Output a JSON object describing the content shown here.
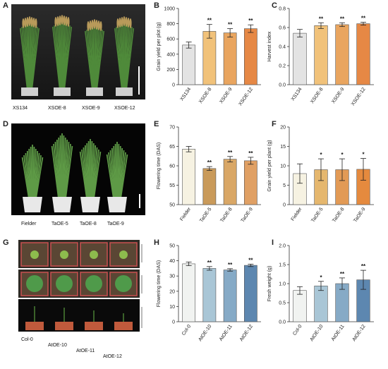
{
  "panels": {
    "a": {
      "letter": "A",
      "labels": [
        "XS134",
        "XSOE-8",
        "XSOE-9",
        "XSOE-12"
      ]
    },
    "b": {
      "letter": "B"
    },
    "c": {
      "letter": "C"
    },
    "d": {
      "letter": "D",
      "labels": [
        "Fielder",
        "TaOE-5",
        "TaOE-8",
        "TaOE-9"
      ]
    },
    "e": {
      "letter": "E"
    },
    "f": {
      "letter": "F"
    },
    "g": {
      "letter": "G",
      "labels": [
        "Col-0",
        "AtOE-10",
        "AtOE-11",
        "AtOE-12"
      ]
    },
    "h": {
      "letter": "H"
    },
    "i": {
      "letter": "I"
    }
  },
  "colors": {
    "photo_bg_a": "#1f1f1f",
    "photo_bg_d": "#050505",
    "plant_green": "#4f8a3a",
    "panicle_tan": "#b89a5a",
    "pot_white": "#e8e8e8",
    "tray_bg": "#3a3026",
    "pot_terracotta": "#c05a3c",
    "scale_bar": "#ffffff"
  },
  "chart_data": [
    {
      "id": "B",
      "type": "bar",
      "categories": [
        "XS134",
        "XSOE-8",
        "XSOE-9",
        "XSOE-12"
      ],
      "values": [
        520,
        700,
        680,
        735
      ],
      "errors": [
        40,
        90,
        55,
        50
      ],
      "significance": [
        "",
        "**",
        "**",
        "**"
      ],
      "ylabel": "Grain yield per plot (g)",
      "ylim": [
        0,
        1000
      ],
      "yticks": [
        0,
        200,
        400,
        600,
        800,
        1000
      ],
      "colors": [
        "#e3e3e3",
        "#f1c27a",
        "#e9a55f",
        "#e68845"
      ]
    },
    {
      "id": "C",
      "type": "bar",
      "categories": [
        "XS134",
        "XSOE-8",
        "XSOE-9",
        "XSOE-12"
      ],
      "values": [
        0.54,
        0.62,
        0.63,
        0.64
      ],
      "errors": [
        0.04,
        0.03,
        0.02,
        0.015
      ],
      "significance": [
        "",
        "**",
        "**",
        "**"
      ],
      "ylabel": "Harvest index",
      "ylim": [
        0,
        0.8
      ],
      "yticks": [
        0.0,
        0.2,
        0.4,
        0.6,
        0.8
      ],
      "colors": [
        "#e3e3e3",
        "#f1c27a",
        "#e9a55f",
        "#e68845"
      ]
    },
    {
      "id": "E",
      "type": "bar",
      "categories": [
        "Fielder",
        "TaOE-5",
        "TaOE-8",
        "TaOE-9"
      ],
      "values": [
        64.3,
        59.3,
        61.7,
        61.3
      ],
      "errors": [
        0.7,
        0.5,
        0.7,
        0.9
      ],
      "significance": [
        "",
        "**",
        "**",
        "**"
      ],
      "ylabel": "Flowering time (DAS)",
      "ylim": [
        50,
        70
      ],
      "yticks": [
        50,
        55,
        60,
        65,
        70
      ],
      "colors": [
        "#f6f2e2",
        "#c99a5a",
        "#d9a766",
        "#e0a064"
      ]
    },
    {
      "id": "F",
      "type": "bar",
      "categories": [
        "Fielder",
        "TaOE-5",
        "TaOE-8",
        "TaOE-9"
      ],
      "values": [
        8.0,
        9.0,
        9.0,
        9.1
      ],
      "errors": [
        2.5,
        2.8,
        2.8,
        2.8
      ],
      "significance": [
        "",
        "*",
        "*",
        "*"
      ],
      "ylabel": "Grain yield per plant (g)",
      "ylim": [
        0,
        20
      ],
      "yticks": [
        0,
        5,
        10,
        15,
        20
      ],
      "colors": [
        "#f6f2e2",
        "#e5b76e",
        "#e29a55",
        "#e58a3e"
      ]
    },
    {
      "id": "H",
      "type": "bar",
      "categories": [
        "Col-0",
        "AtOE-10",
        "AtOE-11",
        "AtOE-12"
      ],
      "values": [
        38,
        35,
        34,
        37
      ],
      "errors": [
        1.2,
        1.2,
        0.8,
        0.8
      ],
      "significance": [
        "",
        "**",
        "**",
        "**"
      ],
      "ylabel": "Flowering time (DAS)",
      "ylim": [
        0,
        50
      ],
      "yticks": [
        0,
        10,
        20,
        30,
        40,
        50
      ],
      "colors": [
        "#f1f3f1",
        "#a9c6d6",
        "#86aac6",
        "#5d87b0"
      ]
    },
    {
      "id": "I",
      "type": "bar",
      "categories": [
        "Col-0",
        "AtOE-10",
        "AtOE-11",
        "AtOE-12"
      ],
      "values": [
        0.82,
        0.94,
        1.0,
        1.1
      ],
      "errors": [
        0.1,
        0.12,
        0.15,
        0.25
      ],
      "significance": [
        "",
        "*",
        "**",
        "**"
      ],
      "ylabel": "Fresh weight (g)",
      "ylim": [
        0,
        2.0
      ],
      "yticks": [
        0.0,
        0.5,
        1.0,
        1.5,
        2.0
      ],
      "colors": [
        "#f1f3f1",
        "#a9c6d6",
        "#86aac6",
        "#5d87b0"
      ]
    }
  ]
}
